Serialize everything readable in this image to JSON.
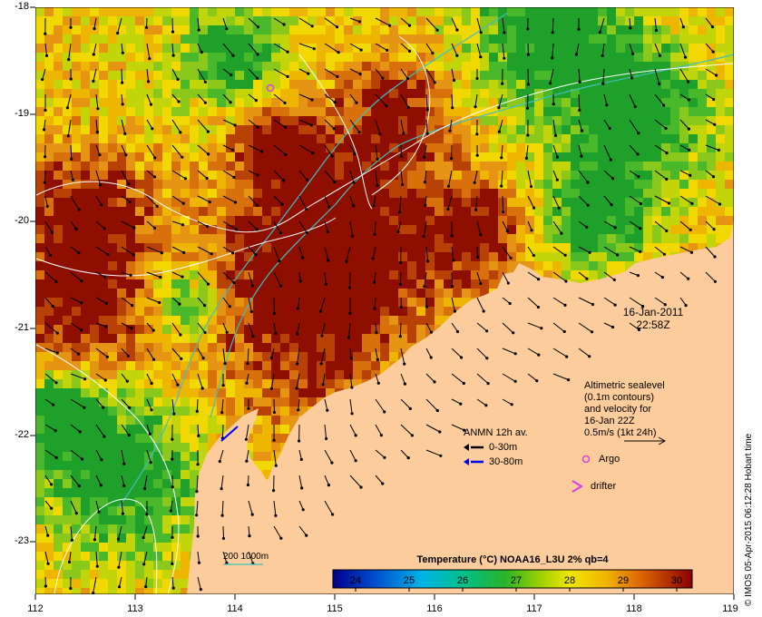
{
  "map": {
    "y_axis_labels": [
      "-18",
      "-19",
      "-20",
      "-21",
      "-22",
      "-23"
    ],
    "x_axis_labels": [
      "112",
      "113",
      "114",
      "115",
      "116",
      "117",
      "118",
      "119"
    ],
    "timestamp": {
      "date": "16-Jan-2011",
      "time": "22:58Z"
    },
    "altimetry_legend": [
      "Altimetric sealevel",
      "(0.1m contours)",
      "and velocity for",
      "16-Jan 22Z",
      "0.5m/s (1kt 24h)"
    ],
    "anmn_legend": {
      "title": "ANMN 12h av.",
      "items": [
        "0-30m",
        "30-80m"
      ]
    },
    "argo_label": "Argo",
    "drifter_label": "drifter",
    "bathymetry_label": "200  1000m",
    "colorbar": {
      "title": "Temperature (°C) NOAA16_L3U 2% qb=4",
      "labels": [
        "24",
        "25",
        "26",
        "27",
        "28",
        "29",
        "30"
      ]
    },
    "credit": "© IMOS 05-Apr-2015 06:12:28 Hobart time",
    "colors": {
      "land": "#fccc9c",
      "argo": "#e040e0",
      "drifter": "#e040e0",
      "anmn_shallow": "#000000",
      "anmn_deep": "#0000ff",
      "bathy_contour": "#40c0c0",
      "sealevel_contour": "#ffffff"
    }
  }
}
